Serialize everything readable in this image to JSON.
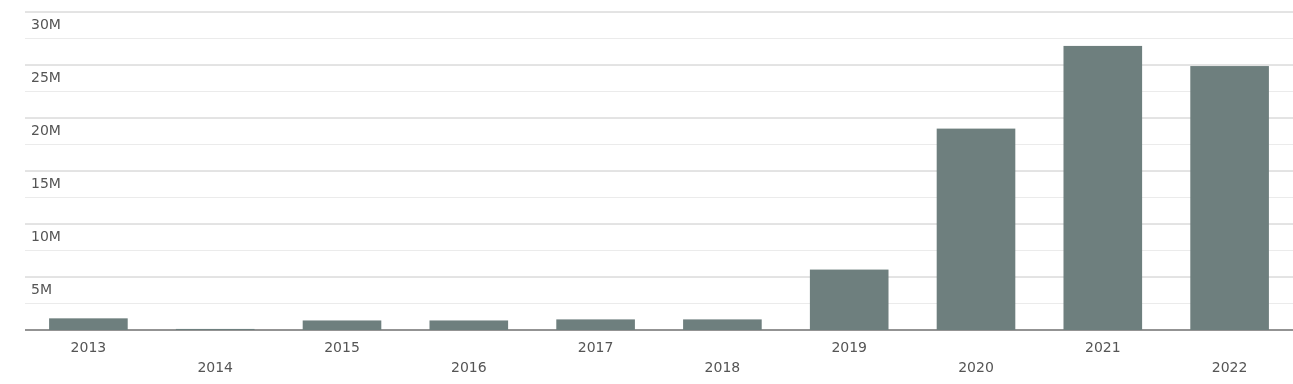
{
  "chart_data": {
    "type": "bar",
    "categories": [
      "2013",
      "2014",
      "2015",
      "2016",
      "2017",
      "2018",
      "2019",
      "2020",
      "2021",
      "2022"
    ],
    "values": [
      1.1,
      0.1,
      0.9,
      0.9,
      1.0,
      1.0,
      5.7,
      19.0,
      26.8,
      24.9
    ],
    "color": "#6e7f7e",
    "ylim": [
      0,
      30
    ],
    "yticks": [
      {
        "value": 0,
        "label": null
      },
      {
        "value": 2.5,
        "label": null
      },
      {
        "value": 5,
        "label": "5M"
      },
      {
        "value": 7.5,
        "label": null
      },
      {
        "value": 10,
        "label": "10M"
      },
      {
        "value": 12.5,
        "label": null
      },
      {
        "value": 15,
        "label": "15M"
      },
      {
        "value": 17.5,
        "label": null
      },
      {
        "value": 20,
        "label": "20M"
      },
      {
        "value": 22.5,
        "label": null
      },
      {
        "value": 25,
        "label": "25M"
      },
      {
        "value": 27.5,
        "label": null
      },
      {
        "value": 30,
        "label": "30M"
      }
    ],
    "grid": "y"
  }
}
